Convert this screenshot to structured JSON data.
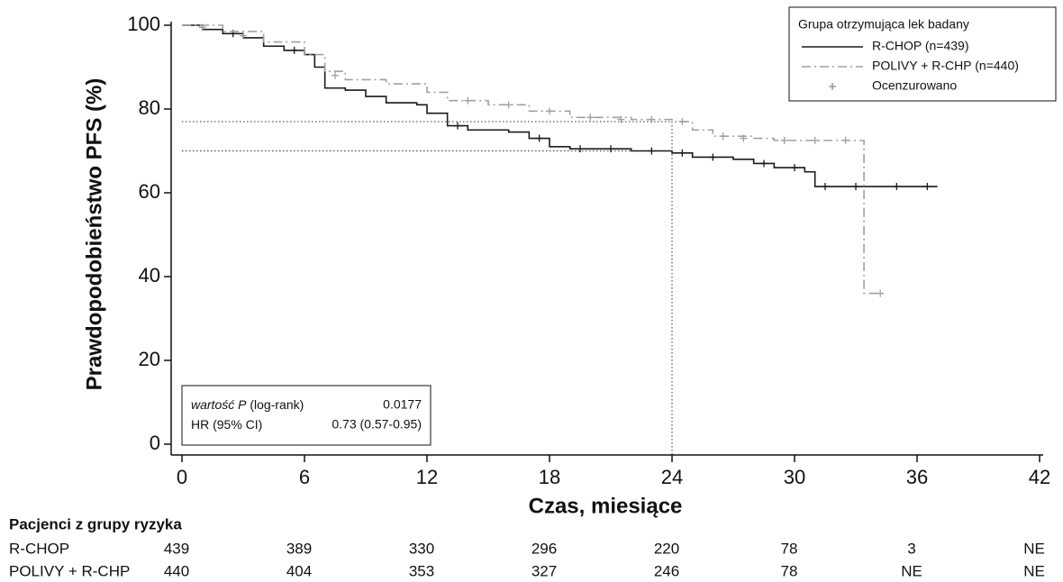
{
  "chart_data": {
    "type": "line",
    "step": true,
    "ylabel": "Prawdopodobieństwo PFS (%)",
    "xlabel": "Czas, miesiące",
    "xlim": [
      0,
      42
    ],
    "ylim": [
      0,
      100
    ],
    "xticks": [
      0,
      6,
      12,
      18,
      24,
      30,
      36,
      42
    ],
    "yticks": [
      0,
      20,
      40,
      60,
      80,
      100
    ],
    "legend": {
      "title": "Grupa otrzymująca lek badany",
      "position": "upper right",
      "censored_label": "Ocenzurowano"
    },
    "series": [
      {
        "name": "R-CHOP (n=439)",
        "color": "#1a1a1a",
        "dash": "solid",
        "x": [
          0,
          1,
          2,
          3,
          4,
          5,
          6,
          6.5,
          7,
          8,
          9,
          10,
          11.5,
          12,
          13,
          14,
          16,
          17,
          18,
          19,
          22,
          24,
          25,
          27,
          28,
          29,
          30.5,
          31,
          37
        ],
        "values": [
          100,
          99,
          98,
          97,
          95,
          94,
          93,
          90,
          85,
          84.5,
          83,
          81.5,
          81,
          79,
          76,
          75,
          74.5,
          73,
          71,
          70.5,
          70,
          69.5,
          68.5,
          68,
          67,
          66,
          65,
          61.5,
          61.5
        ],
        "censored": {
          "x": [
            2.5,
            5.5,
            13.5,
            17.5,
            19.5,
            21,
            23,
            24.5,
            26,
            28.5,
            30,
            31.5,
            33,
            35,
            36.5
          ],
          "values": [
            98,
            94,
            76,
            73,
            70.5,
            70.5,
            70,
            69.5,
            68.5,
            67,
            66,
            61.5,
            61.5,
            61.5,
            61.5
          ]
        }
      },
      {
        "name": "POLIVY  + R-CHP (n=440)",
        "color": "#a0a0a0",
        "dash": "dashdot",
        "x": [
          0,
          2,
          4,
          6,
          7,
          8,
          10,
          12,
          13,
          15,
          17,
          19,
          22,
          24,
          25,
          26,
          28,
          29,
          33.3,
          33.4,
          34.5
        ],
        "values": [
          100,
          98.5,
          96,
          93,
          89,
          87,
          86,
          84,
          82,
          81,
          79.5,
          78,
          77.5,
          77,
          75,
          73.5,
          73,
          72.5,
          72.5,
          36,
          36
        ],
        "censored": {
          "x": [
            1,
            3,
            7.5,
            14,
            16,
            18,
            20,
            21.5,
            23,
            24.5,
            26.5,
            27.5,
            29.5,
            31,
            32.5,
            34.2
          ],
          "values": [
            99.5,
            97.5,
            88,
            82,
            81,
            79.5,
            78,
            77.5,
            77.5,
            77,
            73.5,
            73,
            72.5,
            72.5,
            72.5,
            36
          ]
        }
      }
    ],
    "reference_lines": {
      "x": 24,
      "y": [
        77,
        70
      ]
    },
    "stats_box": {
      "rows": [
        {
          "label_italic": "wartość P",
          "label": "(log-rank)",
          "value": "0.0177"
        },
        {
          "label": "HR (95% CI)",
          "value": "0.73 (0.57-0.95)"
        }
      ]
    },
    "risk_table": {
      "title": "Pacjenci z grupy ryzyka",
      "rows": [
        {
          "name": "R-CHOP",
          "values": [
            "439",
            "389",
            "330",
            "296",
            "220",
            "78",
            "3",
            "NE"
          ]
        },
        {
          "name": "POLIVY + R-CHP",
          "values": [
            "440",
            "404",
            "353",
            "327",
            "246",
            "78",
            "NE",
            "NE"
          ]
        }
      ]
    }
  }
}
